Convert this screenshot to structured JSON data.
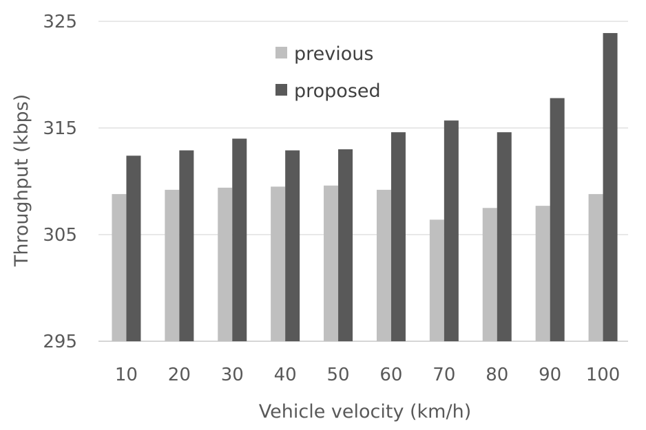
{
  "chart_data": {
    "type": "bar",
    "xlabel": "Vehicle velocity (km/h)",
    "ylabel": "Throughput (kbps)",
    "ylim": [
      295,
      325
    ],
    "yticks": [
      295,
      305,
      315,
      325
    ],
    "categories": [
      "10",
      "20",
      "30",
      "40",
      "50",
      "60",
      "70",
      "80",
      "90",
      "100"
    ],
    "series": [
      {
        "name": "previous",
        "color": "#bfbfbf",
        "values": [
          308.8,
          309.2,
          309.4,
          309.5,
          309.6,
          309.2,
          306.4,
          307.5,
          307.7,
          308.8
        ]
      },
      {
        "name": "proposed",
        "color": "#595959",
        "values": [
          312.4,
          312.9,
          314.0,
          312.9,
          313.0,
          314.6,
          315.7,
          314.6,
          317.8,
          323.9
        ]
      }
    ],
    "grid": true,
    "legend": "top-center"
  }
}
